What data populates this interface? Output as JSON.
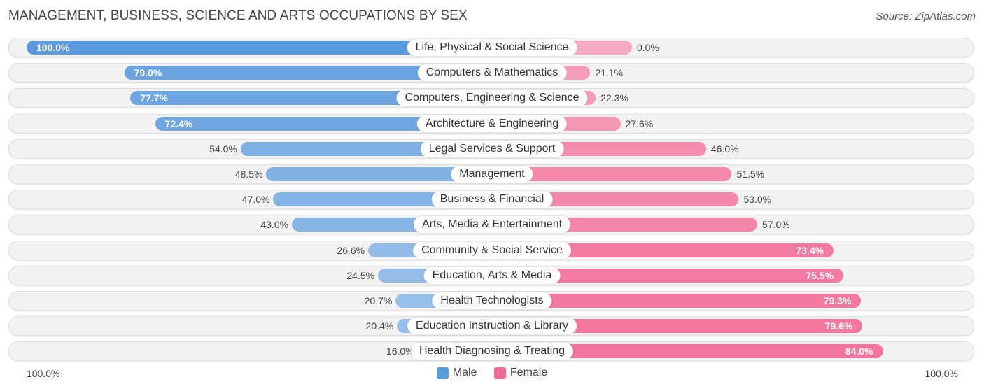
{
  "header": {
    "title": "MANAGEMENT, BUSINESS, SCIENCE AND ARTS OCCUPATIONS BY SEX",
    "source": "Source: ZipAtlas.com"
  },
  "colors": {
    "male_strong": "#5b9bdd",
    "male_light": "#a8c8ec",
    "female_strong": "#f26b97",
    "female_light": "#f6a9c2"
  },
  "chart_data": {
    "type": "bar",
    "orientation": "horizontal-diverging",
    "title": "MANAGEMENT, BUSINESS, SCIENCE AND ARTS OCCUPATIONS BY SEX",
    "categories": [
      "Life, Physical & Social Science",
      "Computers & Mathematics",
      "Computers, Engineering & Science",
      "Architecture & Engineering",
      "Legal Services & Support",
      "Management",
      "Business & Financial",
      "Arts, Media & Entertainment",
      "Community & Social Service",
      "Education, Arts & Media",
      "Health Technologists",
      "Education Instruction & Library",
      "Health Diagnosing & Treating"
    ],
    "series": [
      {
        "name": "Male",
        "values": [
          100.0,
          79.0,
          77.7,
          72.4,
          54.0,
          48.5,
          47.0,
          43.0,
          26.6,
          24.5,
          20.7,
          20.4,
          16.0
        ],
        "labels": [
          "100.0%",
          "79.0%",
          "77.7%",
          "72.4%",
          "54.0%",
          "48.5%",
          "47.0%",
          "43.0%",
          "26.6%",
          "24.5%",
          "20.7%",
          "20.4%",
          "16.0%"
        ]
      },
      {
        "name": "Female",
        "values": [
          0.0,
          21.1,
          22.3,
          27.6,
          46.0,
          51.5,
          53.0,
          57.0,
          73.4,
          75.5,
          79.3,
          79.6,
          84.0
        ],
        "labels": [
          "0.0%",
          "21.1%",
          "22.3%",
          "27.6%",
          "46.0%",
          "51.5%",
          "53.0%",
          "57.0%",
          "73.4%",
          "75.5%",
          "79.3%",
          "79.6%",
          "84.0%"
        ]
      }
    ],
    "xlim": [
      -100,
      100
    ],
    "axis_left_label": "100.0%",
    "axis_right_label": "100.0%",
    "legend": [
      "Male",
      "Female"
    ],
    "legend_position": "bottom-center"
  }
}
